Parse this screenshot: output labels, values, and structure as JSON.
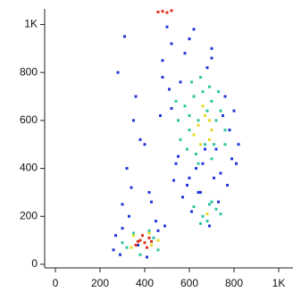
{
  "chart_data": {
    "type": "scatter",
    "xlim": [
      -48,
      1064
    ],
    "ylim": [
      -15,
      1065
    ],
    "xticks": [
      0,
      200,
      400,
      600,
      800,
      {
        "value": 1000,
        "label": "1K"
      }
    ],
    "yticks": [
      0,
      200,
      400,
      600,
      800,
      {
        "value": 1000,
        "label": "1K"
      }
    ],
    "series": [
      {
        "color": "#1f35d8",
        "x": [
          270,
          300,
          320,
          350,
          280,
          310,
          360,
          400,
          420,
          450,
          480,
          500,
          520,
          540,
          560,
          580,
          600,
          620,
          640,
          660,
          680,
          700,
          720,
          740,
          760,
          780,
          800,
          820,
          300,
          340,
          380,
          430,
          470,
          510,
          550,
          590,
          630,
          670,
          710,
          750,
          790,
          260,
          290,
          330,
          370,
          410,
          460,
          490,
          530,
          570,
          610,
          650,
          690,
          730,
          770,
          810,
          520,
          480,
          600,
          700
        ],
        "values": [
          120,
          250,
          400,
          600,
          800,
          950,
          700,
          500,
          300,
          180,
          850,
          990,
          650,
          420,
          760,
          880,
          360,
          980,
          300,
          420,
          820,
          900,
          480,
          380,
          700,
          560,
          640,
          500,
          150,
          320,
          520,
          260,
          620,
          730,
          450,
          330,
          400,
          480,
          360,
          620,
          440,
          60,
          40,
          200,
          80,
          30,
          140,
          160,
          350,
          280,
          220,
          300,
          160,
          260,
          330,
          420,
          920,
          780,
          940,
          860
        ]
      },
      {
        "color": "#2cc4a2",
        "x": [
          560,
          600,
          640,
          680,
          720,
          760,
          580,
          620,
          660,
          700,
          740,
          590,
          630,
          670,
          710,
          550,
          610,
          650,
          690,
          730,
          640,
          700,
          660,
          720,
          680,
          620,
          700,
          740,
          650,
          690,
          320,
          350,
          440,
          460,
          300,
          420,
          380,
          600,
          760,
          540
        ],
        "values": [
          520,
          560,
          600,
          640,
          600,
          560,
          660,
          700,
          720,
          680,
          640,
          480,
          460,
          500,
          500,
          600,
          760,
          780,
          740,
          720,
          420,
          440,
          200,
          230,
          180,
          240,
          260,
          210,
          170,
          250,
          70,
          130,
          110,
          60,
          90,
          140,
          40,
          620,
          500,
          680
        ]
      },
      {
        "color": "#e6d820",
        "x": [
          640,
          670,
          700,
          620,
          660,
          690,
          680,
          350,
          430,
          340,
          420,
          460,
          690,
          650
        ],
        "values": [
          580,
          620,
          560,
          540,
          660,
          600,
          210,
          120,
          80,
          70,
          130,
          100,
          520,
          500
        ]
      },
      {
        "color": "#e0301e",
        "x": [
          380,
          400,
          420,
          360,
          390,
          410,
          370,
          430,
          480,
          500,
          520,
          460
        ],
        "values": [
          100,
          90,
          110,
          80,
          120,
          70,
          95,
          95,
          1055,
          1050,
          1058,
          1052
        ]
      }
    ]
  }
}
